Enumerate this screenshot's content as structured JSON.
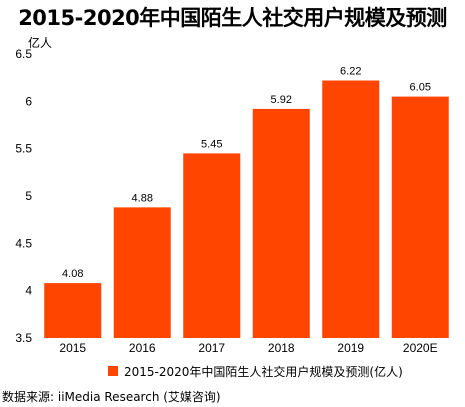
{
  "chart_data": {
    "type": "bar",
    "title": "2015-2020年中国陌生人社交用户规模及预测",
    "unit_label": "亿人",
    "categories": [
      "2015",
      "2016",
      "2017",
      "2018",
      "2019",
      "2020E"
    ],
    "series": [
      {
        "name": "2015-2020年中国陌生人社交用户规模及预测(亿人)",
        "values": [
          4.08,
          4.88,
          5.45,
          5.92,
          6.22,
          6.05
        ],
        "value_labels": [
          "4.08",
          "4.88",
          "5.45",
          "5.92",
          "6.22",
          "6.05"
        ]
      }
    ],
    "ylim": [
      3.5,
      6.5
    ],
    "yticks": [
      "3.5",
      "4",
      "4.5",
      "5",
      "5.5",
      "6",
      "6.5"
    ],
    "grid": false,
    "legend_position": "bottom",
    "bar_color": "#ff4500"
  },
  "source_text": "数据来源: iiMedia Research  (艾媒咨询)"
}
